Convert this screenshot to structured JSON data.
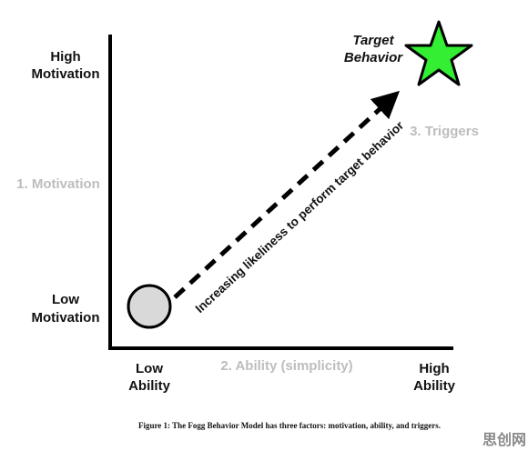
{
  "y_axis": {
    "high_label": [
      "High",
      "Motivation"
    ],
    "name": "1. Motivation",
    "low_label": [
      "Low",
      "Motivation"
    ]
  },
  "x_axis": {
    "low_label": [
      "Low",
      "Ability"
    ],
    "name": "2. Ability (simplicity)",
    "high_label": [
      "High",
      "Ability"
    ]
  },
  "target": [
    "Target",
    "Behavior"
  ],
  "triggers": "3. Triggers",
  "arrow_label": "Increasing likeliness to perform target behavior",
  "caption": "Figure 1: The Fogg Behavior Model has three factors: motivation, ability, and triggers.",
  "watermark": "思创网"
}
